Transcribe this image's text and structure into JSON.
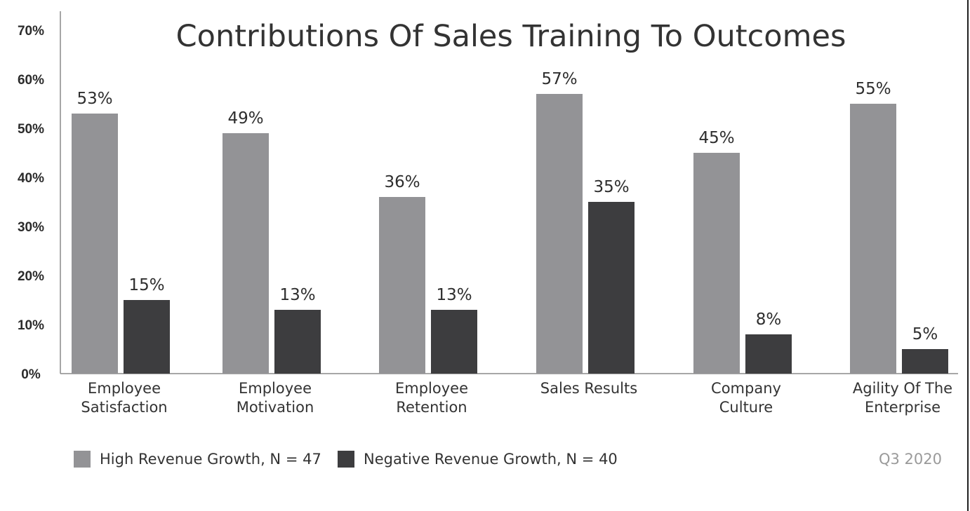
{
  "chart_data": {
    "type": "bar",
    "title": "Contributions Of Sales Training To Outcomes",
    "xlabel": "",
    "ylabel": "",
    "ylim": [
      0,
      70
    ],
    "yticks": [
      "0%",
      "10%",
      "20%",
      "30%",
      "40%",
      "50%",
      "60%",
      "70%"
    ],
    "categories": [
      [
        "Employee",
        "Satisfaction"
      ],
      [
        "Employee",
        "Motivation"
      ],
      [
        "Employee",
        "Retention"
      ],
      [
        "Sales Results"
      ],
      [
        "Company",
        "Culture"
      ],
      [
        "Agility Of The",
        "Enterprise"
      ]
    ],
    "series": [
      {
        "name": "High Revenue Growth, N = 47",
        "color": "#939396",
        "values": [
          53,
          49,
          36,
          57,
          45,
          55
        ],
        "labels": [
          "53%",
          "49%",
          "36%",
          "57%",
          "45%",
          "55%"
        ]
      },
      {
        "name": "Negative Revenue Growth, N = 40",
        "color": "#3d3d3f",
        "values": [
          15,
          13,
          13,
          35,
          8,
          5
        ],
        "labels": [
          "15%",
          "13%",
          "13%",
          "35%",
          "8%",
          "5%"
        ]
      }
    ],
    "grid": false,
    "legend_position": "bottom-left",
    "footnote": "Q3 2020"
  }
}
